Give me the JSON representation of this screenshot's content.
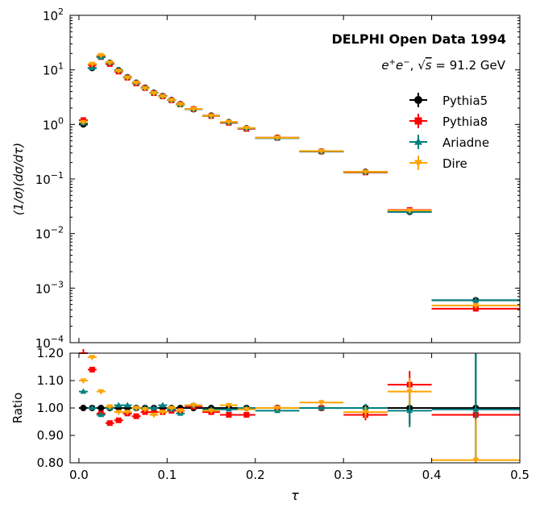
{
  "figure": {
    "annotation_title": "DELPHI Open Data 1994",
    "annotation_sub_prefix": "e",
    "annotation_sub_plus": "+",
    "annotation_sub_minus": "−",
    "annotation_sub_sep": ", ",
    "annotation_sub_root": "√",
    "annotation_sub_s": "s",
    "annotation_sub_value": " = 91.2 GeV",
    "xlabel": "τ",
    "ylabel_top": "(1/σ)(dσ/dτ)",
    "ylabel_bottom": "Ratio",
    "ytick_base": "10",
    "legend_placement": "upper-right"
  },
  "chart_data": [
    {
      "type": "scatter",
      "panel": "main",
      "yscale": "log",
      "ylim": [
        0.0001,
        100
      ],
      "xlim": [
        -0.01,
        0.5
      ],
      "ytick_exponents": [
        "−4",
        "−3",
        "−2",
        "−1",
        "0",
        "1",
        "2"
      ],
      "bins": [
        [
          0.0,
          0.01
        ],
        [
          0.01,
          0.02
        ],
        [
          0.02,
          0.03
        ],
        [
          0.03,
          0.04
        ],
        [
          0.04,
          0.05
        ],
        [
          0.05,
          0.06
        ],
        [
          0.06,
          0.07
        ],
        [
          0.07,
          0.08
        ],
        [
          0.08,
          0.09
        ],
        [
          0.09,
          0.1
        ],
        [
          0.1,
          0.11
        ],
        [
          0.11,
          0.12
        ],
        [
          0.12,
          0.14
        ],
        [
          0.14,
          0.16
        ],
        [
          0.16,
          0.18
        ],
        [
          0.18,
          0.2
        ],
        [
          0.2,
          0.25
        ],
        [
          0.25,
          0.3
        ],
        [
          0.3,
          0.35
        ],
        [
          0.35,
          0.4
        ],
        [
          0.4,
          0.5
        ]
      ],
      "series": [
        {
          "name": "Pythia5",
          "color": "#000000",
          "marker": "circle",
          "values": [
            1.0,
            10.8,
            17.5,
            13.5,
            9.8,
            7.3,
            5.8,
            4.7,
            3.8,
            3.3,
            2.8,
            2.35,
            1.9,
            1.45,
            1.1,
            0.85,
            0.57,
            0.32,
            0.135,
            0.025,
            0.0006
          ],
          "errors": [
            0.02,
            0.1,
            0.15,
            0.12,
            0.09,
            0.07,
            0.06,
            0.05,
            0.04,
            0.04,
            0.03,
            0.03,
            0.02,
            0.02,
            0.015,
            0.012,
            0.008,
            0.005,
            0.003,
            0.001,
            7e-05
          ]
        },
        {
          "name": "Pythia8",
          "color": "#ff0000",
          "marker": "square",
          "values": [
            1.2,
            12.3,
            17.2,
            12.8,
            9.3,
            7.2,
            5.65,
            4.65,
            3.75,
            3.28,
            2.77,
            2.33,
            1.91,
            1.43,
            1.07,
            0.83,
            0.57,
            0.32,
            0.132,
            0.027,
            0.00042
          ],
          "errors": [
            0.03,
            0.12,
            0.16,
            0.12,
            0.09,
            0.07,
            0.06,
            0.05,
            0.04,
            0.04,
            0.03,
            0.03,
            0.02,
            0.02,
            0.015,
            0.012,
            0.008,
            0.005,
            0.003,
            0.001,
            5e-05
          ]
        },
        {
          "name": "Ariadne",
          "color": "#008080",
          "marker": "triangle",
          "values": [
            1.06,
            10.8,
            17.0,
            13.5,
            9.9,
            7.4,
            5.8,
            4.7,
            3.8,
            3.33,
            2.8,
            2.3,
            1.91,
            1.44,
            1.09,
            0.85,
            0.56,
            0.32,
            0.134,
            0.025,
            0.0006
          ],
          "errors": [
            0.02,
            0.1,
            0.15,
            0.12,
            0.09,
            0.07,
            0.06,
            0.05,
            0.04,
            0.04,
            0.03,
            0.03,
            0.02,
            0.02,
            0.015,
            0.012,
            0.008,
            0.005,
            0.003,
            0.001,
            7e-05
          ]
        },
        {
          "name": "Dire",
          "color": "#ffa500",
          "marker": "triangle-down",
          "values": [
            1.1,
            12.8,
            18.5,
            13.6,
            9.6,
            7.2,
            5.8,
            4.6,
            3.75,
            3.25,
            2.78,
            2.33,
            1.92,
            1.44,
            1.11,
            0.86,
            0.57,
            0.325,
            0.135,
            0.0265,
            0.00048
          ],
          "errors": [
            0.03,
            0.12,
            0.17,
            0.12,
            0.09,
            0.07,
            0.06,
            0.05,
            0.04,
            0.04,
            0.03,
            0.03,
            0.02,
            0.02,
            0.015,
            0.012,
            0.008,
            0.005,
            0.003,
            0.001,
            6e-05
          ]
        }
      ]
    },
    {
      "type": "scatter",
      "panel": "ratio",
      "ylim": [
        0.8,
        1.2
      ],
      "xlim": [
        -0.01,
        0.5
      ],
      "yticks": [
        "0.80",
        "0.90",
        "1.00",
        "1.10",
        "1.20"
      ],
      "xticks": [
        "0.0",
        "0.1",
        "0.2",
        "0.3",
        "0.4",
        "0.5"
      ],
      "series": [
        {
          "name": "Pythia5",
          "color": "#000000",
          "marker": "circle",
          "values": [
            1.0,
            1.0,
            1.0,
            1.0,
            1.0,
            1.0,
            1.0,
            1.0,
            1.0,
            1.0,
            1.0,
            1.0,
            1.0,
            1.0,
            1.0,
            1.0,
            1.0,
            1.0,
            1.0,
            1.0,
            1.0
          ],
          "errors": [
            0.002,
            0.002,
            0.002,
            0.002,
            0.002,
            0.002,
            0.002,
            0.002,
            0.002,
            0.002,
            0.002,
            0.002,
            0.002,
            0.003,
            0.003,
            0.004,
            0.004,
            0.008,
            0.015,
            0.06,
            0.25
          ]
        },
        {
          "name": "Pythia8",
          "color": "#ff0000",
          "marker": "square",
          "values": [
            1.22,
            1.14,
            0.98,
            0.945,
            0.955,
            0.98,
            0.97,
            0.985,
            0.985,
            0.985,
            0.99,
            0.99,
            1.005,
            0.985,
            0.975,
            0.975,
            1.0,
            1.0,
            0.975,
            1.085,
            0.975
          ],
          "errors": [
            0.005,
            0.004,
            0.004,
            0.004,
            0.004,
            0.004,
            0.004,
            0.004,
            0.004,
            0.004,
            0.004,
            0.004,
            0.004,
            0.005,
            0.005,
            0.006,
            0.006,
            0.01,
            0.02,
            0.05,
            0.03
          ]
        },
        {
          "name": "Ariadne",
          "color": "#008080",
          "marker": "triangle",
          "values": [
            1.06,
            1.0,
            0.975,
            1.0,
            1.01,
            1.01,
            1.0,
            1.0,
            1.0,
            1.01,
            0.995,
            0.98,
            1.01,
            0.995,
            0.995,
            1.0,
            0.99,
            1.0,
            1.0,
            0.99,
            0.995
          ],
          "errors": [
            0.004,
            0.003,
            0.003,
            0.003,
            0.003,
            0.003,
            0.003,
            0.003,
            0.003,
            0.003,
            0.003,
            0.003,
            0.003,
            0.004,
            0.004,
            0.005,
            0.005,
            0.008,
            0.015,
            0.06,
            0.25
          ]
        },
        {
          "name": "Dire",
          "color": "#ffa500",
          "marker": "triangle-down",
          "values": [
            1.1,
            1.185,
            1.06,
            1.005,
            0.985,
            0.985,
            1.0,
            0.995,
            0.975,
            0.985,
            1.0,
            0.99,
            1.01,
            0.99,
            1.01,
            0.995,
            1.0,
            1.02,
            0.985,
            1.06,
            0.81
          ],
          "errors": [
            0.005,
            0.004,
            0.004,
            0.003,
            0.003,
            0.003,
            0.003,
            0.003,
            0.003,
            0.003,
            0.003,
            0.003,
            0.003,
            0.004,
            0.004,
            0.005,
            0.005,
            0.01,
            0.02,
            0.05,
            0.15
          ]
        }
      ]
    }
  ]
}
